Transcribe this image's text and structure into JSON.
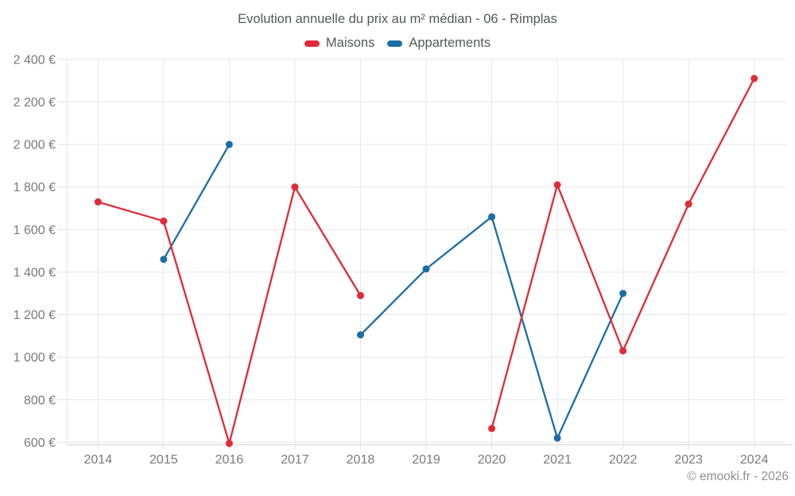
{
  "header": {
    "title": "Evolution annuelle du prix au m² médian - 06 - Rimplas"
  },
  "legend": [
    {
      "label": "Maisons",
      "color": "#e02b36"
    },
    {
      "label": "Appartements",
      "color": "#1b6da6"
    }
  ],
  "footer": {
    "copyright": "© emooki.fr - 2026"
  },
  "colors": {
    "maisons": "#e02b36",
    "appartements": "#1b6da6",
    "gridline": "#e7e7e7",
    "axis_line": "#d9d9d9",
    "tick": "#e0e0e0",
    "axis_text": "#7a7a7a",
    "title_text": "#55585c"
  },
  "chart_data": {
    "type": "line",
    "title": "Evolution annuelle du prix au m² médian - 06 - Rimplas",
    "categories": [
      "2014",
      "2015",
      "2016",
      "2017",
      "2018",
      "2019",
      "2020",
      "2021",
      "2022",
      "2023",
      "2024"
    ],
    "series": [
      {
        "name": "Maisons",
        "color": "#e02b36",
        "values": [
          1730,
          1640,
          595,
          1800,
          1290,
          null,
          665,
          1810,
          1030,
          1720,
          2310
        ]
      },
      {
        "name": "Appartements",
        "color": "#1b6da6",
        "values": [
          null,
          1460,
          2000,
          null,
          1105,
          1415,
          1660,
          620,
          1300,
          null,
          null
        ]
      }
    ],
    "xlabel": "",
    "ylabel": "",
    "ylim": [
      600,
      2400
    ],
    "ytick_step": 200,
    "ytick_suffix": " €",
    "grid": true,
    "legend_position": "top",
    "marker": "circle"
  }
}
